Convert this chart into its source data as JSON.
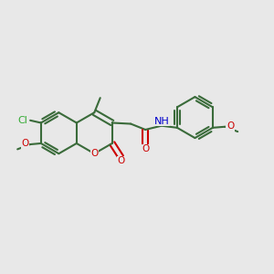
{
  "bg_color": "#e8e8e8",
  "bond_color": "#3a6b3a",
  "bond_width": 1.5,
  "dbo": 0.055,
  "atom_colors": {
    "O": "#cc0000",
    "N": "#0000cc",
    "Cl": "#33aa33",
    "C": "#3a6b3a",
    "H": "#5599aa"
  },
  "font_size": 7.5,
  "fig_size": [
    3.0,
    3.0
  ],
  "dpi": 100
}
